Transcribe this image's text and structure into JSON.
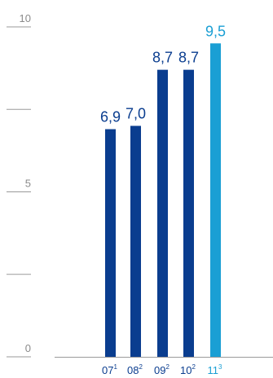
{
  "chart_data": {
    "type": "bar",
    "categories": [
      {
        "base": "07",
        "sup": "1"
      },
      {
        "base": "08",
        "sup": "2"
      },
      {
        "base": "09",
        "sup": "2"
      },
      {
        "base": "10",
        "sup": "2"
      },
      {
        "base": "11",
        "sup": "3"
      }
    ],
    "values": [
      6.9,
      7.0,
      8.7,
      8.7,
      9.5
    ],
    "value_labels": [
      "6,9",
      "7,0",
      "8,7",
      "8,7",
      "9,5"
    ],
    "highlight_index": 4,
    "ylim": [
      0,
      10
    ],
    "y_ticks": [
      0,
      2.5,
      5,
      7.5,
      10
    ],
    "y_tick_labels": [
      "0",
      "",
      "5",
      "",
      "10"
    ],
    "grid": false,
    "colors": {
      "bar": "#0a3d8f",
      "highlight": "#1a9fd4",
      "axis": "#9a9a9a",
      "tick_text": "#8a8a8a"
    }
  }
}
